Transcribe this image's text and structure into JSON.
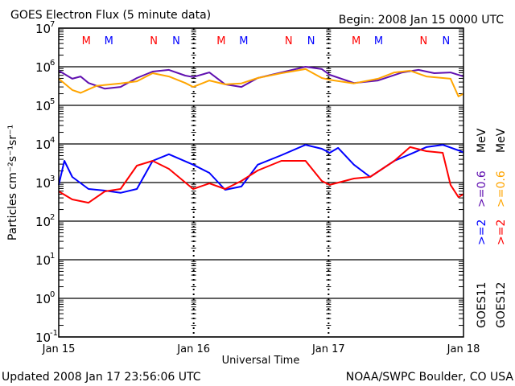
{
  "chart_data": {
    "type": "line",
    "title": "GOES Electron Flux (5 minute data)",
    "begin": "Begin: 2008 Jan 15 0000 UTC",
    "xlabel": "Universal Time",
    "ylabel": "Particles cm⁻²s⁻¹sr⁻¹",
    "x_unit": "hours since 2008 Jan 15 0000 UTC",
    "xlim": [
      0,
      72
    ],
    "x_ticks": [
      {
        "h": 0,
        "label": "Jan 15"
      },
      {
        "h": 24,
        "label": "Jan 16"
      },
      {
        "h": 48,
        "label": "Jan 17"
      },
      {
        "h": 72,
        "label": "Jan 18"
      }
    ],
    "yscale": "log",
    "ylim": [
      0.1,
      10000000
    ],
    "y_ticks": [
      {
        "exp": "7"
      },
      {
        "exp": "6"
      },
      {
        "exp": "5"
      },
      {
        "exp": "4"
      },
      {
        "exp": "3"
      },
      {
        "exp": "2"
      },
      {
        "exp": "1"
      },
      {
        "exp": "0"
      },
      {
        "exp": "-1"
      }
    ],
    "y_tick_base": "10",
    "threshold": 1000,
    "annotations": [
      {
        "text": "M",
        "h": 4.9,
        "color": "#ff0000"
      },
      {
        "text": "M",
        "h": 8.9,
        "color": "#0000ff"
      },
      {
        "text": "N",
        "h": 16.9,
        "color": "#ff0000"
      },
      {
        "text": "N",
        "h": 20.9,
        "color": "#0000ff"
      },
      {
        "text": "M",
        "h": 28.9,
        "color": "#ff0000"
      },
      {
        "text": "M",
        "h": 32.9,
        "color": "#0000ff"
      },
      {
        "text": "N",
        "h": 40.9,
        "color": "#ff0000"
      },
      {
        "text": "N",
        "h": 44.9,
        "color": "#0000ff"
      },
      {
        "text": "M",
        "h": 52.9,
        "color": "#ff0000"
      },
      {
        "text": "M",
        "h": 56.9,
        "color": "#0000ff"
      },
      {
        "text": "N",
        "h": 64.9,
        "color": "#ff0000"
      },
      {
        "text": "N",
        "h": 68.9,
        "color": "#0000ff"
      }
    ],
    "series": [
      {
        "name": "GOES11 >=0.6 MeV",
        "color": "#6010b0",
        "points": [
          [
            0,
            790000
          ],
          [
            2.4,
            490000
          ],
          [
            3.9,
            560000
          ],
          [
            5.3,
            380000
          ],
          [
            8.2,
            270000
          ],
          [
            11,
            300000
          ],
          [
            13.9,
            510000
          ],
          [
            16.7,
            750000
          ],
          [
            19.6,
            830000
          ],
          [
            22.5,
            590000
          ],
          [
            23.9,
            540000
          ],
          [
            26.8,
            710000
          ],
          [
            29.6,
            350000
          ],
          [
            32.5,
            300000
          ],
          [
            35.4,
            510000
          ],
          [
            39.6,
            710000
          ],
          [
            43.9,
            1000000
          ],
          [
            46.8,
            870000
          ],
          [
            48.2,
            620000
          ],
          [
            52.5,
            380000
          ],
          [
            56.8,
            440000
          ],
          [
            61.1,
            710000
          ],
          [
            64,
            830000
          ],
          [
            66.8,
            680000
          ],
          [
            69.7,
            710000
          ],
          [
            72,
            560000
          ]
        ]
      },
      {
        "name": "GOES12 >=0.6 MeV",
        "color": "#ffa500",
        "points": [
          [
            0,
            490000
          ],
          [
            2.4,
            250000
          ],
          [
            3.9,
            210000
          ],
          [
            6.7,
            320000
          ],
          [
            11,
            370000
          ],
          [
            13.9,
            420000
          ],
          [
            16.7,
            680000
          ],
          [
            19.6,
            560000
          ],
          [
            22.5,
            380000
          ],
          [
            23.9,
            300000
          ],
          [
            26.8,
            440000
          ],
          [
            29.6,
            350000
          ],
          [
            32.5,
            370000
          ],
          [
            35.4,
            510000
          ],
          [
            39.6,
            680000
          ],
          [
            43.9,
            870000
          ],
          [
            46.8,
            510000
          ],
          [
            48.2,
            460000
          ],
          [
            52.5,
            370000
          ],
          [
            56.8,
            490000
          ],
          [
            59.7,
            710000
          ],
          [
            62.5,
            790000
          ],
          [
            65.4,
            560000
          ],
          [
            69.7,
            490000
          ],
          [
            71.1,
            170000
          ],
          [
            72,
            200000
          ]
        ]
      },
      {
        "name": "GOES11 >=2 MeV",
        "color": "#0000ff",
        "points": [
          [
            0,
            870
          ],
          [
            1,
            3650
          ],
          [
            2.4,
            1400
          ],
          [
            5.3,
            680
          ],
          [
            8.2,
            620
          ],
          [
            11,
            540
          ],
          [
            13.9,
            680
          ],
          [
            16.7,
            3650
          ],
          [
            19.6,
            5400
          ],
          [
            23.9,
            2900
          ],
          [
            26.8,
            1780
          ],
          [
            29.6,
            650
          ],
          [
            32.5,
            790
          ],
          [
            35.4,
            2900
          ],
          [
            39.6,
            5100
          ],
          [
            43.9,
            9500
          ],
          [
            46.8,
            7500
          ],
          [
            48.2,
            5900
          ],
          [
            49.7,
            7900
          ],
          [
            52.5,
            2900
          ],
          [
            55.4,
            1400
          ],
          [
            59.7,
            3650
          ],
          [
            62.5,
            5400
          ],
          [
            65.4,
            8300
          ],
          [
            68.3,
            9500
          ],
          [
            71.1,
            6800
          ],
          [
            72,
            6000
          ]
        ]
      },
      {
        "name": "GOES12 >=2 MeV",
        "color": "#ff0000",
        "points": [
          [
            0,
            590
          ],
          [
            2.4,
            365
          ],
          [
            5.3,
            300
          ],
          [
            8.2,
            590
          ],
          [
            11,
            680
          ],
          [
            13.9,
            2740
          ],
          [
            16.7,
            3650
          ],
          [
            19.6,
            2260
          ],
          [
            23.9,
            680
          ],
          [
            26.8,
            950
          ],
          [
            29.6,
            680
          ],
          [
            32.5,
            1100
          ],
          [
            35.4,
            2050
          ],
          [
            39.6,
            3650
          ],
          [
            43.9,
            3650
          ],
          [
            46.8,
            1100
          ],
          [
            48.2,
            870
          ],
          [
            52.5,
            1270
          ],
          [
            55.4,
            1400
          ],
          [
            59.7,
            3650
          ],
          [
            62.5,
            8300
          ],
          [
            65.4,
            6500
          ],
          [
            68.3,
            5900
          ],
          [
            69.7,
            870
          ],
          [
            71.1,
            420
          ],
          [
            72,
            500
          ]
        ]
      }
    ]
  },
  "legend": {
    "goes11": {
      "sat": "GOES11",
      "hi": ">=2",
      "lo": ">=0.6",
      "unit": "MeV"
    },
    "goes12": {
      "sat": "GOES12",
      "hi": ">=2",
      "lo": ">=0.6",
      "unit": "MeV"
    }
  },
  "footer": {
    "updated": "Updated 2008 Jan 17 23:56:06 UTC",
    "credit": "NOAA/SWPC Boulder, CO USA"
  }
}
